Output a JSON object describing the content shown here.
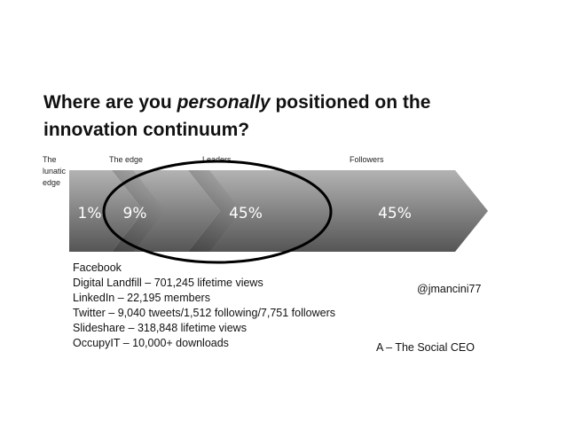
{
  "title": {
    "part1": "Where are you ",
    "emphasis": "personally",
    "part2": " positioned on the",
    "line2": "innovation continuum?"
  },
  "stages": [
    {
      "label": "The lunatic edge",
      "percent": "1%"
    },
    {
      "label": "The edge",
      "percent": "9%"
    },
    {
      "label": "Leaders",
      "percent": "45%"
    },
    {
      "label": "Followers",
      "percent": "45%"
    }
  ],
  "stats": [
    "Facebook",
    "Digital Landfill – 701,245 lifetime views",
    "LinkedIn – 22,195 members",
    "Twitter – 9,040 tweets/1,512 following/7,751 followers",
    "Slideshare – 318,848 lifetime views",
    "OccupyIT – 10,000+ downloads"
  ],
  "handle": "@jmancini77",
  "credit": "A – The Social CEO",
  "colors": {
    "arrow_light": "#b3b3b3",
    "arrow_dark": "#555555",
    "percent_text": "#ffffff",
    "ellipse_stroke": "#000000"
  }
}
